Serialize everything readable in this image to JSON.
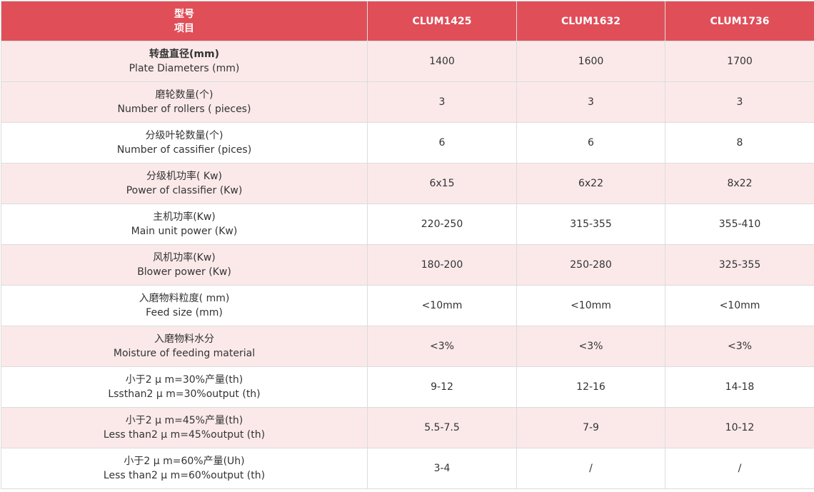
{
  "colors": {
    "header": "#e04e58",
    "row_alt": "#fbe9ea"
  },
  "header": {
    "item_line1": "型号",
    "item_line2": "项目",
    "models": [
      "CLUM1425",
      "CLUM1632",
      "CLUM1736"
    ]
  },
  "rows": [
    {
      "zh": "转盘直径(mm)",
      "en": "Plate Diameters (mm)",
      "values": [
        "1400",
        "1600",
        "1700"
      ]
    },
    {
      "zh": "磨轮数量(个)",
      "en": "Number of rollers ( pieces)",
      "values": [
        "3",
        "3",
        "3"
      ]
    },
    {
      "zh": "分级叶轮数量(个)",
      "en": "Number of cassifier (pices)",
      "values": [
        "6",
        "6",
        "8"
      ]
    },
    {
      "zh": "分级机功率( Kw)",
      "en": "Power of classifier (Kw)",
      "values": [
        "6x15",
        "6x22",
        "8x22"
      ]
    },
    {
      "zh": "主机功率(Kw)",
      "en": "Main unit power (Kw)",
      "values": [
        "220-250",
        "315-355",
        "355-410"
      ]
    },
    {
      "zh": "风机功率(Kw)",
      "en": "Blower power (Kw)",
      "values": [
        "180-200",
        "250-280",
        "325-355"
      ]
    },
    {
      "zh": "入磨物料粒度( mm)",
      "en": "Feed size (mm)",
      "values": [
        "<10mm",
        "<10mm",
        "<10mm"
      ]
    },
    {
      "zh": "入磨物料水分",
      "en": "Moisture of feeding material",
      "values": [
        "<3%",
        "<3%",
        "<3%"
      ]
    },
    {
      "zh": "小于2 μ m=30%产量(th)",
      "en": "Lssthan2 μ m=30%output (th)",
      "values": [
        "9-12",
        "12-16",
        "14-18"
      ]
    },
    {
      "zh": "小于2 μ m=45%产量(th)",
      "en": "Less than2 μ m=45%output (th)",
      "values": [
        "5.5-7.5",
        "7-9",
        "10-12"
      ]
    },
    {
      "zh": "小于2 μ m=60%产量(Uh)",
      "en": "Less than2 μ m=60%output (th)",
      "values": [
        "3-4",
        "/",
        "/"
      ]
    }
  ]
}
